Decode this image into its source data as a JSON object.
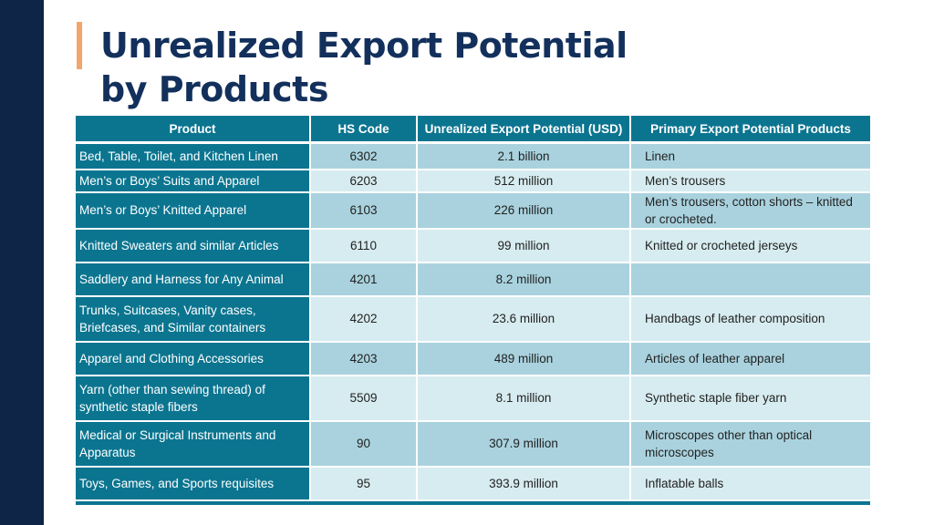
{
  "title": "Unrealized Export Potential\nby Products",
  "table": {
    "headers": [
      "Product",
      "HS Code",
      "Unrealized Export Potential (USD)",
      "Primary Export Potential Products"
    ],
    "rows": [
      {
        "product": "Bed, Table, Toilet, and Kitchen Linen",
        "code": "6302",
        "potential": "2.1 billion",
        "primary": "Linen"
      },
      {
        "product": "Men’s or Boys’ Suits and Apparel",
        "code": "6203",
        "potential": "512 million",
        "primary": "Men’s trousers"
      },
      {
        "product": "Men’s or Boys’ Knitted Apparel",
        "code": "6103",
        "potential": "226 million",
        "primary": "Men’s trousers, cotton shorts – knitted or crocheted."
      },
      {
        "product": "Knitted Sweaters and similar Articles",
        "code": "6110",
        "potential": "99 million",
        "primary": "Knitted or crocheted jerseys"
      },
      {
        "product": "Saddlery and Harness for Any Animal",
        "code": "4201",
        "potential": "8.2 million",
        "primary": ""
      },
      {
        "product": "Trunks, Suitcases, Vanity cases, Briefcases, and Similar containers",
        "code": "4202",
        "potential": "23.6 million",
        "primary": "Handbags of leather composition"
      },
      {
        "product": "Apparel and Clothing Accessories",
        "code": "4203",
        "potential": "489 million",
        "primary": "Articles of leather apparel"
      },
      {
        "product": "Yarn (other than sewing thread) of synthetic staple fibers",
        "code": "5509",
        "potential": "8.1 million",
        "primary": "Synthetic staple fiber yarn"
      },
      {
        "product": "Medical or Surgical Instruments and Apparatus",
        "code": "90",
        "potential": "307.9 million",
        "primary": "Microscopes other than optical microscopes"
      },
      {
        "product": "Toys, Games, and Sports requisites",
        "code": "95",
        "potential": "393.9 million",
        "primary": "Inflatable balls"
      }
    ]
  },
  "colors": {
    "sidebar": "#0f2547",
    "accent": "#f2a66b",
    "title": "#13305c",
    "header": "#0b7590",
    "row_dark": "#a9d2de",
    "row_light": "#d7ecf0"
  }
}
